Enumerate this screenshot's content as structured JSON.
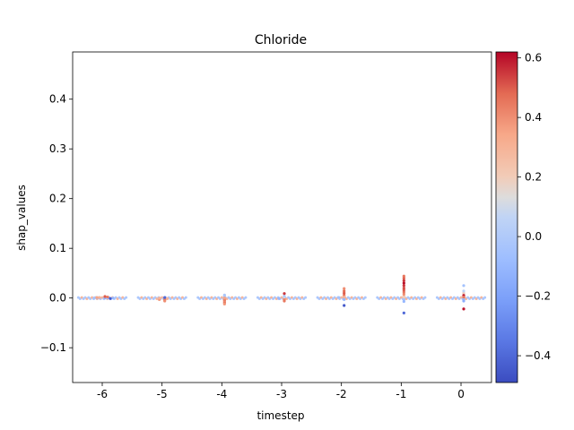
{
  "chart_data": {
    "type": "scatter",
    "subtype": "swarm",
    "title": "Chloride",
    "xlabel": "timestep",
    "ylabel": "shap_values",
    "categories": [
      "-6",
      "-5",
      "-4",
      "-3",
      "-2",
      "-1",
      "0"
    ],
    "ylim": [
      -0.17,
      0.495
    ],
    "yticks": [
      -0.1,
      0.0,
      0.1,
      0.2,
      0.3,
      0.4
    ],
    "ytick_labels": [
      "−0.1",
      "0.0",
      "0.1",
      "0.2",
      "0.3",
      "0.4"
    ],
    "grid": false,
    "colorbar": {
      "colormap": "coolwarm",
      "range": [
        -0.49,
        0.62
      ],
      "ticks": [
        -0.4,
        -0.2,
        0.0,
        0.2,
        0.4,
        0.6
      ],
      "tick_labels": [
        "−0.4",
        "−0.2",
        "0.0",
        "0.2",
        "0.4",
        "0.6"
      ]
    },
    "series": [
      {
        "category": "-6",
        "points": [
          {
            "y": 0.001,
            "c": -0.15
          },
          {
            "y": 0.0,
            "c": -0.12
          },
          {
            "y": 0.0,
            "c": -0.1
          },
          {
            "y": 0.0,
            "c": -0.08
          },
          {
            "y": 0.0,
            "c": -0.1
          },
          {
            "y": 0.001,
            "c": 0.3
          },
          {
            "y": 0.002,
            "c": 0.45
          },
          {
            "y": -0.001,
            "c": -0.45
          },
          {
            "y": 0.003,
            "c": 0.5
          },
          {
            "y": 0.0,
            "c": -0.05
          },
          {
            "y": 0.0,
            "c": -0.1
          },
          {
            "y": 0.001,
            "c": 0.35
          }
        ]
      },
      {
        "category": "-5",
        "points": [
          {
            "y": -0.001,
            "c": 0.35
          },
          {
            "y": -0.002,
            "c": 0.4
          },
          {
            "y": -0.004,
            "c": 0.45
          },
          {
            "y": -0.006,
            "c": 0.4
          },
          {
            "y": -0.003,
            "c": 0.38
          },
          {
            "y": 0.0,
            "c": 0.3
          },
          {
            "y": 0.001,
            "c": -0.4
          },
          {
            "y": -0.001,
            "c": 0.3
          }
        ]
      },
      {
        "category": "-4",
        "points": [
          {
            "y": -0.002,
            "c": 0.4
          },
          {
            "y": -0.004,
            "c": 0.42
          },
          {
            "y": -0.006,
            "c": 0.45
          },
          {
            "y": -0.008,
            "c": 0.4
          },
          {
            "y": -0.01,
            "c": 0.45
          },
          {
            "y": -0.012,
            "c": 0.38
          },
          {
            "y": 0.002,
            "c": -0.05
          },
          {
            "y": 0.004,
            "c": 0.0
          },
          {
            "y": 0.006,
            "c": -0.02
          },
          {
            "y": 0.0,
            "c": 0.35
          }
        ]
      },
      {
        "category": "-3",
        "points": [
          {
            "y": 0.0,
            "c": 0.35
          },
          {
            "y": -0.002,
            "c": 0.4
          },
          {
            "y": -0.004,
            "c": 0.42
          },
          {
            "y": -0.006,
            "c": 0.45
          },
          {
            "y": 0.002,
            "c": 0.1
          },
          {
            "y": 0.004,
            "c": 0.0
          },
          {
            "y": 0.009,
            "c": 0.55
          },
          {
            "y": -0.001,
            "c": -0.1
          }
        ]
      },
      {
        "category": "-2",
        "points": [
          {
            "y": 0.0,
            "c": 0.35
          },
          {
            "y": 0.003,
            "c": 0.42
          },
          {
            "y": 0.006,
            "c": 0.45
          },
          {
            "y": 0.01,
            "c": 0.5
          },
          {
            "y": 0.014,
            "c": 0.48
          },
          {
            "y": 0.019,
            "c": 0.4
          },
          {
            "y": 0.002,
            "c": 0.3
          },
          {
            "y": -0.003,
            "c": -0.1
          },
          {
            "y": -0.015,
            "c": -0.45
          },
          {
            "y": 0.001,
            "c": -0.05
          }
        ]
      },
      {
        "category": "-1",
        "points": [
          {
            "y": 0.0,
            "c": 0.3
          },
          {
            "y": 0.004,
            "c": 0.35
          },
          {
            "y": 0.008,
            "c": 0.4
          },
          {
            "y": 0.012,
            "c": 0.45
          },
          {
            "y": 0.016,
            "c": 0.5
          },
          {
            "y": 0.02,
            "c": 0.52
          },
          {
            "y": 0.025,
            "c": 0.55
          },
          {
            "y": 0.03,
            "c": 0.6
          },
          {
            "y": 0.035,
            "c": 0.55
          },
          {
            "y": 0.04,
            "c": 0.5
          },
          {
            "y": 0.044,
            "c": 0.45
          },
          {
            "y": -0.003,
            "c": -0.05
          },
          {
            "y": -0.007,
            "c": -0.1
          },
          {
            "y": -0.03,
            "c": -0.4
          },
          {
            "y": 0.002,
            "c": 0.2
          }
        ]
      },
      {
        "category": "0",
        "points": [
          {
            "y": 0.0,
            "c": 0.35
          },
          {
            "y": 0.003,
            "c": 0.4
          },
          {
            "y": 0.006,
            "c": 0.3
          },
          {
            "y": 0.01,
            "c": 0.2
          },
          {
            "y": 0.014,
            "c": 0.05
          },
          {
            "y": 0.025,
            "c": -0.05
          },
          {
            "y": -0.003,
            "c": -0.1
          },
          {
            "y": -0.006,
            "c": -0.15
          },
          {
            "y": -0.022,
            "c": 0.6
          },
          {
            "y": 0.005,
            "c": 0.6
          },
          {
            "y": 0.002,
            "c": 0.45
          }
        ]
      }
    ]
  }
}
